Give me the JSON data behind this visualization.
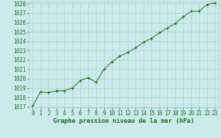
{
  "x": [
    0,
    1,
    2,
    3,
    4,
    5,
    6,
    7,
    8,
    9,
    10,
    11,
    12,
    13,
    14,
    15,
    16,
    17,
    18,
    19,
    20,
    21,
    22,
    23
  ],
  "y": [
    1017.1,
    1018.6,
    1018.5,
    1018.7,
    1018.7,
    1019.0,
    1019.8,
    1020.1,
    1019.6,
    1021.0,
    1021.8,
    1022.4,
    1022.8,
    1023.3,
    1023.9,
    1024.3,
    1024.9,
    1025.4,
    1025.9,
    1026.6,
    1027.2,
    1027.2,
    1027.9,
    1028.1
  ],
  "line_color": "#1a6b1a",
  "marker": "+",
  "marker_color": "#1a6b1a",
  "bg_color": "#cceaea",
  "grid_color": "#aacccc",
  "text_color": "#1a6b1a",
  "title": "Graphe pression niveau de la mer (hPa)",
  "ylim_min": 1017,
  "ylim_max": 1028,
  "yticks": [
    1017,
    1018,
    1019,
    1020,
    1021,
    1022,
    1023,
    1024,
    1025,
    1026,
    1027,
    1028
  ],
  "tick_fontsize": 5.5,
  "title_fontsize": 6.5
}
